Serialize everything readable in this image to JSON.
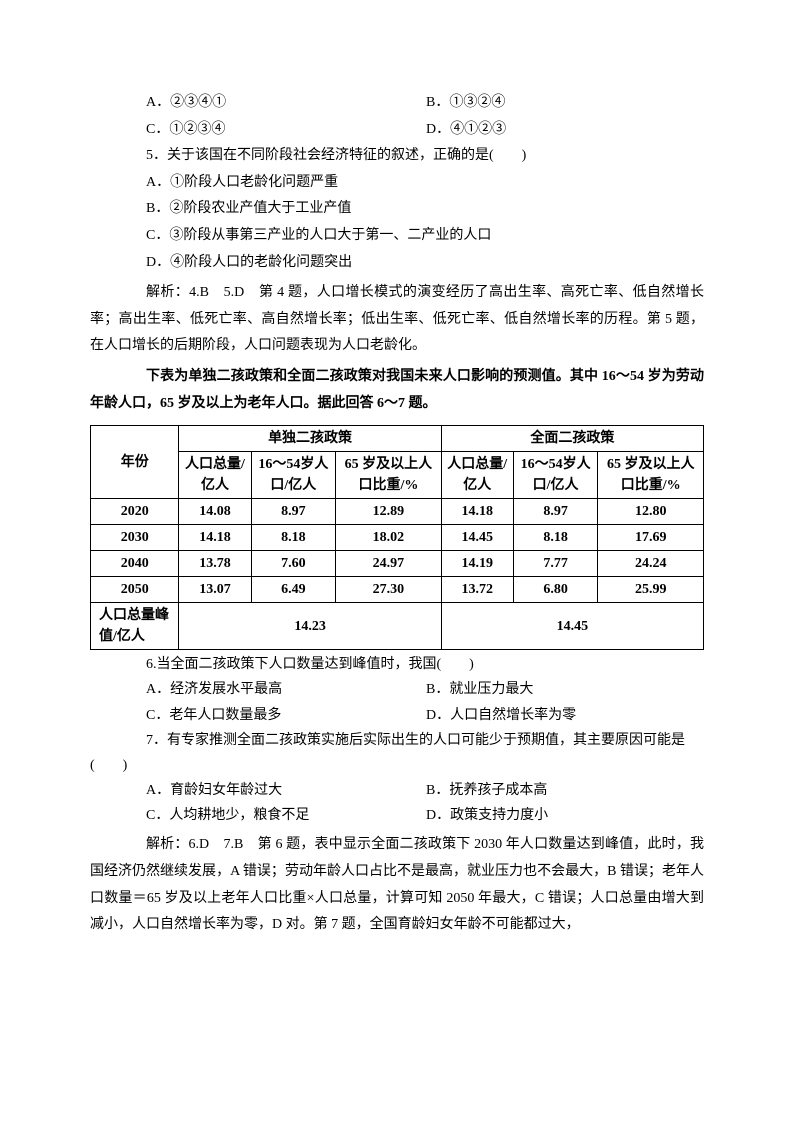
{
  "q4_options": {
    "a": "A．②③④①",
    "b": "B．①③②④",
    "c": "C．①②③④",
    "d": "D．④①②③"
  },
  "q5": {
    "stem": "5．关于该国在不同阶段社会经济特征的叙述，正确的是(　　)",
    "a": "A．①阶段人口老龄化问题严重",
    "b": "B．②阶段农业产值大于工业产值",
    "c": "C．③阶段从事第三产业的人口大于第一、二产业的人口",
    "d": "D．④阶段人口的老龄化问题突出"
  },
  "analysis45": "解析：4.B　5.D　第 4 题，人口增长模式的演变经历了高出生率、高死亡率、低自然增长率；高出生率、低死亡率、高自然增长率；低出生率、低死亡率、低自然增长率的历程。第 5 题，在人口增长的后期阶段，人口问题表现为人口老龄化。",
  "intro67": "下表为单独二孩政策和全面二孩政策对我国未来人口影响的预测值。其中 16～54 岁为劳动年龄人口，65 岁及以上为老年人口。据此回答 6～7 题。",
  "table": {
    "head1": {
      "c1": "年份",
      "c2": "单独二孩政策",
      "c3": "全面二孩政策"
    },
    "head2": {
      "a": "人口总量/亿人",
      "b": "16～54岁人口/亿人",
      "c": "65 岁及以上人口比重/%",
      "d": "人口总量/亿人",
      "e": "16～54岁人口/亿人",
      "f": "65 岁及以上人口比重/%"
    },
    "rows": [
      {
        "y": "2020",
        "a": "14.08",
        "b": "8.97",
        "c": "12.89",
        "d": "14.18",
        "e": "8.97",
        "f": "12.80"
      },
      {
        "y": "2030",
        "a": "14.18",
        "b": "8.18",
        "c": "18.02",
        "d": "14.45",
        "e": "8.18",
        "f": "17.69"
      },
      {
        "y": "2040",
        "a": "13.78",
        "b": "7.60",
        "c": "24.97",
        "d": "14.19",
        "e": "7.77",
        "f": "24.24"
      },
      {
        "y": "2050",
        "a": "13.07",
        "b": "6.49",
        "c": "27.30",
        "d": "13.72",
        "e": "6.80",
        "f": "25.99"
      }
    ],
    "peak": {
      "label": "人口总量峰值/亿人",
      "v1": "14.23",
      "v2": "14.45"
    }
  },
  "q6": {
    "stem": "6.当全面二孩政策下人口数量达到峰值时，我国(　　)",
    "a": "A．经济发展水平最高",
    "b": "B．就业压力最大",
    "c": "C．老年人口数量最多",
    "d": "D．人口自然增长率为零"
  },
  "q7": {
    "stem_line1": "7．有专家推测全面二孩政策实施后实际出生的人口可能少于预期值，其主要原因可能是",
    "stem_line2": "(　　)",
    "a": "A．育龄妇女年龄过大",
    "b": "B．抚养孩子成本高",
    "c": "C．人均耕地少，粮食不足",
    "d": "D．政策支持力度小"
  },
  "analysis67": "解析：6.D　7.B　第 6 题，表中显示全面二孩政策下 2030 年人口数量达到峰值，此时，我国经济仍然继续发展，A 错误；劳动年龄人口占比不是最高，就业压力也不会最大，B 错误；老年人口数量＝65 岁及以上老年人口比重×人口总量，计算可知 2050 年最大，C 错误；人口总量由增大到减小，人口自然增长率为零，D 对。第 7 题，全国育龄妇女年龄不可能都过大，"
}
